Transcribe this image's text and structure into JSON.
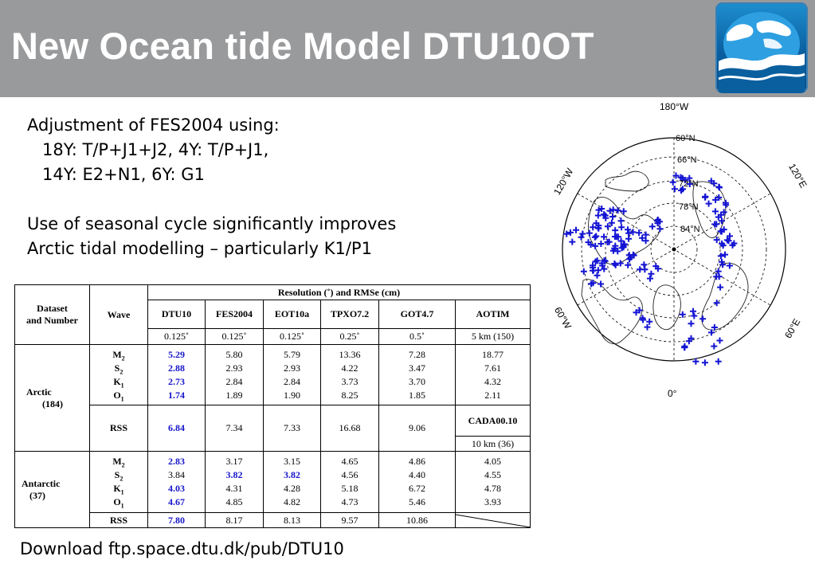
{
  "title": "New Ocean tide Model DTU10OT",
  "intro": {
    "line1": "Adjustment of FES2004 using:",
    "line2": "18Y: T/P+J1+J2, 4Y: T/P+J1,",
    "line3": "14Y: E2+N1, 6Y: G1",
    "line4": "Use of seasonal cycle significantly improves",
    "line5": "Arctic tidal modelling – particularly K1/P1"
  },
  "table": {
    "dataset_header": [
      "Dataset",
      "and Number"
    ],
    "wave_header": "Wave",
    "resolution_header": "Resolution (˚) and RMSe (cm)",
    "models": [
      "DTU10",
      "FES2004",
      "EOT10a",
      "TPXO7.2",
      "GOT4.7",
      "AOTIM"
    ],
    "resolutions": [
      "0.125˚",
      "0.125˚",
      "0.125˚",
      "0.25˚",
      "0.5˚",
      "5 km (150)"
    ],
    "arctic": {
      "label": "Arctic",
      "number": "(184)",
      "waves": [
        {
          "w": "M",
          "sub": "2",
          "vals": [
            "5.29",
            "5.80",
            "5.79",
            "13.36",
            "7.28",
            "18.77"
          ]
        },
        {
          "w": "S",
          "sub": "2",
          "vals": [
            "2.88",
            "2.93",
            "2.93",
            "4.22",
            "3.47",
            "7.61"
          ]
        },
        {
          "w": "K",
          "sub": "1",
          "vals": [
            "2.73",
            "2.84",
            "2.84",
            "3.73",
            "3.70",
            "4.32"
          ]
        },
        {
          "w": "O",
          "sub": "1",
          "vals": [
            "1.74",
            "1.89",
            "1.90",
            "8.25",
            "1.85",
            "2.11"
          ]
        }
      ],
      "rss_label": "RSS",
      "rss": [
        "6.84",
        "7.34",
        "7.33",
        "16.68",
        "9.06"
      ],
      "extra_model": "CADA00.10",
      "extra_res": "10 km (36)"
    },
    "antarctic": {
      "label": "Antarctic",
      "number": "(37)",
      "waves": [
        {
          "w": "M",
          "sub": "2",
          "vals": [
            "2.83",
            "3.17",
            "3.15",
            "4.65",
            "4.86",
            "4.05"
          ]
        },
        {
          "w": "S",
          "sub": "2",
          "vals": [
            "3.84",
            "3.82",
            "3.82",
            "4.56",
            "4.40",
            "4.55"
          ]
        },
        {
          "w": "K",
          "sub": "1",
          "vals": [
            "4.03",
            "4.31",
            "4.28",
            "5.18",
            "6.72",
            "4.78"
          ]
        },
        {
          "w": "O",
          "sub": "1",
          "vals": [
            "4.67",
            "4.85",
            "4.82",
            "4.73",
            "5.46",
            "3.93"
          ]
        }
      ],
      "rss_label": "RSS",
      "rss": [
        "7.80",
        "8.17",
        "8.13",
        "9.57",
        "10.86"
      ]
    }
  },
  "map": {
    "labels": {
      "top": "180°W",
      "bottom": "0°",
      "left_top": "120°W",
      "right_top": "120°E",
      "left_bottom": "60°W",
      "right_bottom": "60°E",
      "lat60": "60°N",
      "lat66": "66°N",
      "lat72": "72°N",
      "lat78": "78°N",
      "lat84": "84°N"
    },
    "marker_color": "#1414d4"
  },
  "footer": "Download ftp.space.dtu.dk/pub/DTU10"
}
